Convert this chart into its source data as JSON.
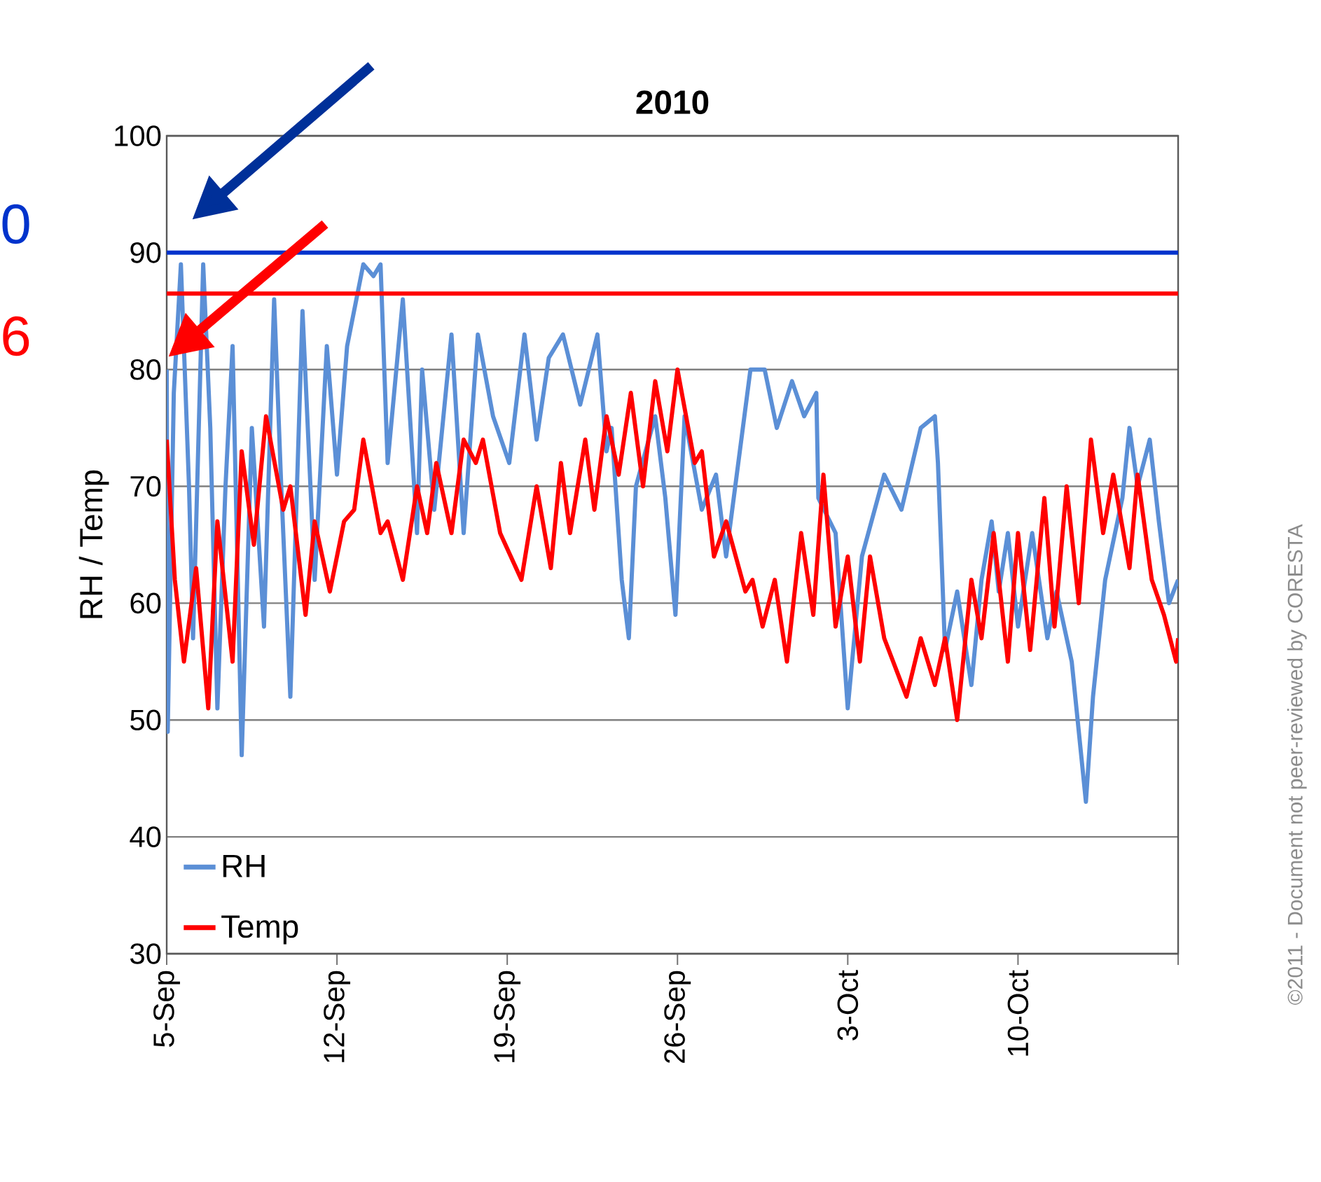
{
  "chart_data": {
    "type": "line",
    "title": "2010",
    "ylabel": "RH / Temp",
    "xlim": [
      "2010-09-05",
      "2010-10-16T14:00"
    ],
    "xticks": [
      {
        "value": "2010-09-05",
        "label": "5-Sep"
      },
      {
        "value": "2010-09-12",
        "label": "12-Sep"
      },
      {
        "value": "2010-09-19",
        "label": "19-Sep"
      },
      {
        "value": "2010-09-26",
        "label": "26-Sep"
      },
      {
        "value": "2010-10-03",
        "label": "3-Oct"
      },
      {
        "value": "2010-10-10",
        "label": "10-Oct"
      },
      {
        "value": "2010-10-16T14:00",
        "label": null
      }
    ],
    "ylim": [
      30,
      100
    ],
    "yticks": [
      30,
      40,
      50,
      60,
      70,
      80,
      90,
      100
    ],
    "grid": "y",
    "legend": "bottom left",
    "line_style": "solid",
    "ref_lines": [
      {
        "axis": "y",
        "value": 90,
        "color": "#0033cc"
      },
      {
        "axis": "y",
        "value": 86.5,
        "color": "#ff0000"
      }
    ],
    "annotations": [
      "0",
      "6",
      "©2011 - Document not peer-reviewed by CORESTA"
    ],
    "series": [
      {
        "name": "RH",
        "color": "#5b8fd6",
        "x": [
          "2010-09-05T00:00",
          "2010-09-05T01:00",
          "2010-09-05T07:00",
          "2010-09-05T14:00",
          "2010-09-05T22:00",
          "2010-09-06T02:00",
          "2010-09-06T12:00",
          "2010-09-06T19:00",
          "2010-09-07T02:00",
          "2010-09-07T10:00",
          "2010-09-07T17:00",
          "2010-09-08T02:00",
          "2010-09-08T12:00",
          "2010-09-09T00:00",
          "2010-09-09T10:00",
          "2010-09-09T17:00",
          "2010-09-10T02:00",
          "2010-09-10T14:00",
          "2010-09-11T02:00",
          "2010-09-11T14:00",
          "2010-09-12T00:00",
          "2010-09-12T10:00",
          "2010-09-13T02:00",
          "2010-09-13T12:00",
          "2010-09-13T19:00",
          "2010-09-14T02:00",
          "2010-09-14T17:00",
          "2010-09-15T07:00",
          "2010-09-15T12:00",
          "2010-09-16T00:00",
          "2010-09-16T17:00",
          "2010-09-17T05:00",
          "2010-09-17T19:00",
          "2010-09-18T10:00",
          "2010-09-19T02:00",
          "2010-09-19T17:00",
          "2010-09-20T05:00",
          "2010-09-20T17:00",
          "2010-09-21T07:00",
          "2010-09-22T00:00",
          "2010-09-22T17:00",
          "2010-09-23T02:00",
          "2010-09-23T07:00",
          "2010-09-23T17:00",
          "2010-09-24T00:00",
          "2010-09-24T07:00",
          "2010-09-25T02:00",
          "2010-09-25T12:00",
          "2010-09-25T22:00",
          "2010-09-26T07:00",
          "2010-09-27T00:00",
          "2010-09-27T14:00",
          "2010-09-28T00:00",
          "2010-09-29T00:00",
          "2010-09-29T14:00",
          "2010-09-30T02:00",
          "2010-09-30T17:00",
          "2010-10-01T05:00",
          "2010-10-01T17:00",
          "2010-10-01T19:00",
          "2010-10-02T12:00",
          "2010-10-03T00:00",
          "2010-10-03T14:00",
          "2010-10-04T12:00",
          "2010-10-05T05:00",
          "2010-10-06T00:00",
          "2010-10-06T14:00",
          "2010-10-06T17:00",
          "2010-10-07T00:00",
          "2010-10-07T12:00",
          "2010-10-08T02:00",
          "2010-10-08T12:00",
          "2010-10-08T22:00",
          "2010-10-09T05:00",
          "2010-10-09T14:00",
          "2010-10-10T00:00",
          "2010-10-10T14:00",
          "2010-10-11T05:00",
          "2010-10-11T14:00",
          "2010-10-12T05:00",
          "2010-10-12T19:00",
          "2010-10-13T02:00",
          "2010-10-13T14:00",
          "2010-10-14T07:00",
          "2010-10-14T14:00",
          "2010-10-14T22:00",
          "2010-10-15T10:00",
          "2010-10-15T19:00",
          "2010-10-16T05:00",
          "2010-10-16T14:00"
        ],
        "values": [
          80,
          49,
          78,
          89,
          70,
          57,
          89,
          75,
          51,
          70,
          82,
          47,
          75,
          58,
          86,
          70,
          52,
          85,
          62,
          82,
          71,
          82,
          89,
          88,
          89,
          72,
          86,
          66,
          80,
          68,
          83,
          66,
          83,
          76,
          72,
          83,
          74,
          81,
          83,
          77,
          83,
          73,
          75,
          62,
          57,
          70,
          76,
          69,
          59,
          76,
          68,
          71,
          64,
          80,
          80,
          75,
          79,
          76,
          78,
          69,
          66,
          51,
          64,
          71,
          68,
          75,
          76,
          72,
          56,
          61,
          53,
          62,
          67,
          61,
          66,
          58,
          66,
          57,
          61,
          55,
          43,
          52,
          62,
          69,
          75,
          70,
          74,
          67,
          60,
          62
        ]
      },
      {
        "name": "Temp",
        "color": "#ff0000",
        "x": [
          "2010-09-05T00:00",
          "2010-09-05T08:00",
          "2010-09-05T17:00",
          "2010-09-06T05:00",
          "2010-09-06T17:00",
          "2010-09-07T02:00",
          "2010-09-07T17:00",
          "2010-09-08T02:00",
          "2010-09-08T14:00",
          "2010-09-09T02:00",
          "2010-09-09T19:00",
          "2010-09-10T02:00",
          "2010-09-10T17:00",
          "2010-09-11T02:00",
          "2010-09-11T17:00",
          "2010-09-12T07:00",
          "2010-09-12T17:00",
          "2010-09-13T02:00",
          "2010-09-13T19:00",
          "2010-09-14T02:00",
          "2010-09-14T17:00",
          "2010-09-15T07:00",
          "2010-09-15T17:00",
          "2010-09-16T02:00",
          "2010-09-16T17:00",
          "2010-09-17T05:00",
          "2010-09-17T17:00",
          "2010-09-18T00:00",
          "2010-09-18T17:00",
          "2010-09-19T14:00",
          "2010-09-20T05:00",
          "2010-09-20T19:00",
          "2010-09-21T05:00",
          "2010-09-21T14:00",
          "2010-09-22T05:00",
          "2010-09-22T14:00",
          "2010-09-23T02:00",
          "2010-09-23T14:00",
          "2010-09-24T02:00",
          "2010-09-24T14:00",
          "2010-09-25T02:00",
          "2010-09-25T14:00",
          "2010-09-26T00:00",
          "2010-09-26T17:00",
          "2010-09-27T00:00",
          "2010-09-27T12:00",
          "2010-09-28T00:00",
          "2010-09-28T19:00",
          "2010-09-29T02:00",
          "2010-09-29T12:00",
          "2010-09-30T00:00",
          "2010-09-30T12:00",
          "2010-10-01T02:00",
          "2010-10-01T14:00",
          "2010-10-02T00:00",
          "2010-10-02T12:00",
          "2010-10-03T00:00",
          "2010-10-03T12:00",
          "2010-10-03T22:00",
          "2010-10-04T12:00",
          "2010-10-05T10:00",
          "2010-10-06T00:00",
          "2010-10-06T14:00",
          "2010-10-07T00:00",
          "2010-10-07T12:00",
          "2010-10-08T02:00",
          "2010-10-08T12:00",
          "2010-10-09T00:00",
          "2010-10-09T14:00",
          "2010-10-10T00:00",
          "2010-10-10T12:00",
          "2010-10-11T02:00",
          "2010-10-11T12:00",
          "2010-10-12T00:00",
          "2010-10-12T12:00",
          "2010-10-13T00:00",
          "2010-10-13T12:00",
          "2010-10-13T22:00",
          "2010-10-14T14:00",
          "2010-10-14T22:00",
          "2010-10-15T12:00",
          "2010-10-16T00:00",
          "2010-10-16T12:00",
          "2010-10-16T14:00"
        ],
        "values": [
          74,
          62,
          55,
          63,
          51,
          67,
          55,
          73,
          65,
          76,
          68,
          70,
          59,
          67,
          61,
          67,
          68,
          74,
          66,
          67,
          62,
          70,
          66,
          72,
          66,
          74,
          72,
          74,
          66,
          62,
          70,
          63,
          72,
          66,
          74,
          68,
          76,
          71,
          78,
          70,
          79,
          73,
          80,
          72,
          73,
          64,
          67,
          61,
          62,
          58,
          62,
          55,
          66,
          59,
          71,
          58,
          64,
          55,
          64,
          57,
          52,
          57,
          53,
          57,
          50,
          62,
          57,
          66,
          55,
          66,
          56,
          69,
          58,
          70,
          60,
          74,
          66,
          71,
          63,
          71,
          62,
          59,
          55,
          57
        ]
      }
    ]
  }
}
